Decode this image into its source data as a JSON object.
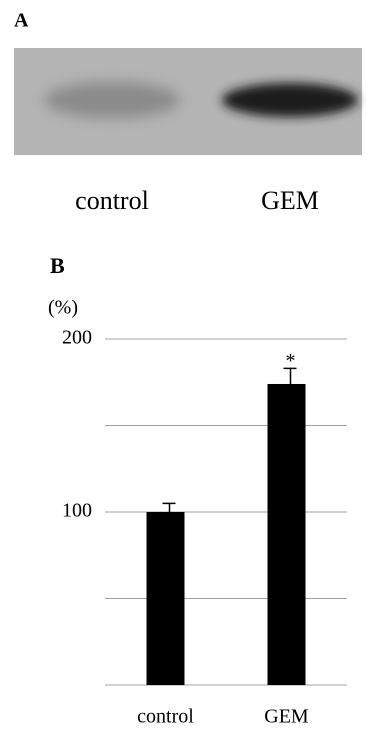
{
  "panel_a": {
    "label": "A",
    "lanes": [
      "control",
      "GEM"
    ]
  },
  "chart_data": {
    "type": "bar",
    "panel_label": "B",
    "ylabel": "(%)",
    "categories": [
      "control",
      "GEM"
    ],
    "values": [
      100,
      174
    ],
    "errors": [
      5,
      9
    ],
    "color": "#000000",
    "annotation": "*",
    "ylim": [
      0,
      200
    ],
    "yticks": [
      100,
      200
    ],
    "gridlines": [
      0,
      50,
      100,
      150,
      200
    ]
  }
}
